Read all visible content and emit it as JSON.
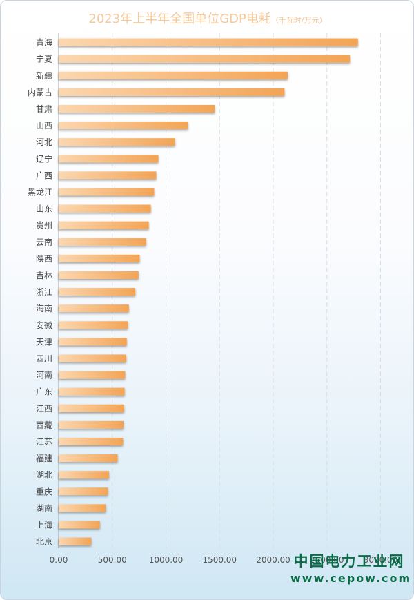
{
  "title": "2023年上半年全国单位GDP电耗",
  "unit": "（千瓦时/万元）",
  "watermark": {
    "name": "中国电力工业网",
    "url": "www.cepow.com"
  },
  "colors": {
    "bar_start": "#fbd7b0",
    "bar_end": "#f3a455",
    "title": "#f6c99a",
    "watermark": "#0a6b46"
  },
  "chart_data": {
    "type": "bar",
    "orientation": "horizontal",
    "categories": [
      "青海",
      "宁夏",
      "新疆",
      "内蒙古",
      "甘肃",
      "山西",
      "河北",
      "辽宁",
      "广西",
      "黑龙江",
      "山东",
      "贵州",
      "云南",
      "陕西",
      "吉林",
      "浙江",
      "海南",
      "安徽",
      "天津",
      "四川",
      "河南",
      "广东",
      "江西",
      "西藏",
      "江苏",
      "福建",
      "湖北",
      "重庆",
      "湖南",
      "上海",
      "北京"
    ],
    "values": [
      2790,
      2715,
      2135,
      2105,
      1455,
      1205,
      1085,
      930,
      910,
      890,
      860,
      840,
      815,
      755,
      745,
      715,
      655,
      645,
      635,
      630,
      620,
      615,
      610,
      605,
      600,
      550,
      470,
      460,
      440,
      385,
      305
    ],
    "xticks": [
      "0.00",
      "500.00",
      "1000.00",
      "1500.00",
      "2000.00",
      "2500.00",
      "3000.00"
    ],
    "xlim": [
      0,
      3000
    ],
    "grid": true,
    "legend": "none"
  }
}
